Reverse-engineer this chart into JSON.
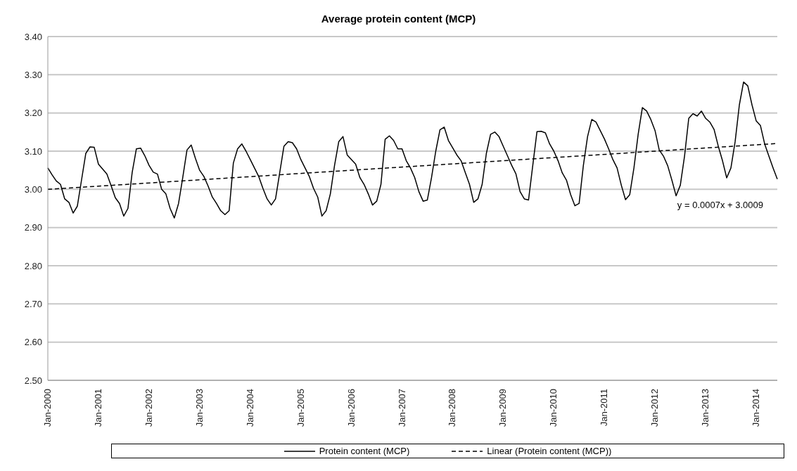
{
  "chart_data": {
    "type": "line",
    "title": "Average protein content (MCP)",
    "categories": [
      "Jan-2000",
      null,
      null,
      null,
      null,
      null,
      null,
      null,
      null,
      null,
      null,
      null,
      "Jan-2001",
      null,
      null,
      null,
      null,
      null,
      null,
      null,
      null,
      null,
      null,
      null,
      "Jan-2002",
      null,
      null,
      null,
      null,
      null,
      null,
      null,
      null,
      null,
      null,
      null,
      "Jan-2003",
      null,
      null,
      null,
      null,
      null,
      null,
      null,
      null,
      null,
      null,
      null,
      "Jan-2004",
      null,
      null,
      null,
      null,
      null,
      null,
      null,
      null,
      null,
      null,
      null,
      "Jan-2005",
      null,
      null,
      null,
      null,
      null,
      null,
      null,
      null,
      null,
      null,
      null,
      "Jan-2006",
      null,
      null,
      null,
      null,
      null,
      null,
      null,
      null,
      null,
      null,
      null,
      "Jan-2007",
      null,
      null,
      null,
      null,
      null,
      null,
      null,
      null,
      null,
      null,
      null,
      "Jan-2008",
      null,
      null,
      null,
      null,
      null,
      null,
      null,
      null,
      null,
      null,
      null,
      "Jan-2009",
      null,
      null,
      null,
      null,
      null,
      null,
      null,
      null,
      null,
      null,
      null,
      "Jan-2010",
      null,
      null,
      null,
      null,
      null,
      null,
      null,
      null,
      null,
      null,
      null,
      "Jan-2011",
      null,
      null,
      null,
      null,
      null,
      null,
      null,
      null,
      null,
      null,
      null,
      "Jan-2012",
      null,
      null,
      null,
      null,
      null,
      null,
      null,
      null,
      null,
      null,
      null,
      "Jan-2013",
      null,
      null,
      null,
      null,
      null,
      null,
      null,
      null,
      null,
      null,
      null,
      "Jan-2014",
      null,
      null,
      null,
      null,
      null
    ],
    "series": [
      {
        "name": "Protein content (MCP)",
        "color": "#000000",
        "line_style": "solid",
        "values": [
          3.056,
          3.038,
          3.022,
          3.013,
          2.975,
          2.966,
          2.938,
          2.956,
          3.025,
          3.094,
          3.111,
          3.11,
          3.066,
          3.053,
          3.04,
          3.01,
          2.978,
          2.963,
          2.93,
          2.95,
          3.044,
          3.106,
          3.108,
          3.088,
          3.063,
          3.045,
          3.04,
          3.0,
          2.988,
          2.95,
          2.925,
          2.963,
          3.031,
          3.103,
          3.116,
          3.081,
          3.05,
          3.034,
          3.009,
          2.98,
          2.963,
          2.944,
          2.934,
          2.944,
          3.069,
          3.106,
          3.119,
          3.1,
          3.078,
          3.056,
          3.034,
          3.003,
          2.975,
          2.959,
          2.975,
          3.044,
          3.113,
          3.125,
          3.122,
          3.106,
          3.078,
          3.056,
          3.034,
          3.003,
          2.98,
          2.93,
          2.944,
          2.988,
          3.063,
          3.125,
          3.138,
          3.09,
          3.078,
          3.066,
          3.031,
          3.013,
          2.988,
          2.959,
          2.969,
          3.013,
          3.131,
          3.14,
          3.128,
          3.106,
          3.106,
          3.075,
          3.056,
          3.031,
          2.994,
          2.969,
          2.972,
          3.031,
          3.1,
          3.156,
          3.163,
          3.128,
          3.109,
          3.09,
          3.075,
          3.044,
          3.013,
          2.966,
          2.975,
          3.013,
          3.094,
          3.144,
          3.15,
          3.138,
          3.113,
          3.088,
          3.063,
          3.041,
          2.994,
          2.975,
          2.972,
          3.062,
          3.151,
          3.152,
          3.148,
          3.119,
          3.1,
          3.075,
          3.043,
          3.024,
          2.986,
          2.957,
          2.963,
          3.062,
          3.138,
          3.183,
          3.176,
          3.154,
          3.132,
          3.106,
          3.078,
          3.056,
          3.011,
          2.973,
          2.986,
          3.056,
          3.144,
          3.214,
          3.205,
          3.183,
          3.154,
          3.103,
          3.087,
          3.062,
          3.024,
          2.983,
          3.011,
          3.087,
          3.186,
          3.198,
          3.192,
          3.205,
          3.186,
          3.176,
          3.157,
          3.113,
          3.075,
          3.03,
          3.056,
          3.125,
          3.221,
          3.281,
          3.271,
          3.221,
          3.179,
          3.167,
          3.119,
          3.087,
          3.056,
          3.027
        ]
      },
      {
        "name": "Linear (Protein content (MCP))",
        "color": "#000000",
        "line_style": "dashed",
        "values": [
          3.0,
          null,
          null,
          null,
          null,
          null,
          null,
          null,
          null,
          null,
          null,
          null,
          null,
          null,
          null,
          null,
          null,
          null,
          null,
          null,
          null,
          null,
          null,
          null,
          null,
          null,
          null,
          null,
          null,
          null,
          null,
          null,
          null,
          null,
          null,
          null,
          null,
          null,
          null,
          null,
          null,
          null,
          null,
          null,
          null,
          null,
          null,
          null,
          null,
          null,
          null,
          null,
          null,
          null,
          null,
          null,
          null,
          null,
          null,
          null,
          null,
          null,
          null,
          null,
          null,
          null,
          null,
          null,
          null,
          null,
          null,
          null,
          null,
          null,
          null,
          null,
          null,
          null,
          null,
          null,
          null,
          null,
          null,
          null,
          null,
          null,
          null,
          null,
          null,
          null,
          null,
          null,
          null,
          null,
          null,
          null,
          null,
          null,
          null,
          null,
          null,
          null,
          null,
          null,
          null,
          null,
          null,
          null,
          null,
          null,
          null,
          null,
          null,
          null,
          null,
          null,
          null,
          null,
          null,
          null,
          null,
          null,
          null,
          null,
          null,
          null,
          null,
          null,
          null,
          null,
          null,
          null,
          null,
          null,
          null,
          null,
          null,
          null,
          null,
          null,
          null,
          null,
          null,
          null,
          null,
          null,
          null,
          null,
          null,
          null,
          null,
          null,
          null,
          null,
          null,
          null,
          null,
          null,
          null,
          null,
          null,
          null,
          null,
          null,
          null,
          null,
          null,
          null,
          null,
          null,
          null,
          null,
          null,
          3.12
        ]
      }
    ],
    "ylim": [
      2.5,
      3.4
    ],
    "yticks": [
      {
        "value": 2.5,
        "label": "2.50"
      },
      {
        "value": 2.6,
        "label": "2.60"
      },
      {
        "value": 2.7,
        "label": "2.70"
      },
      {
        "value": 2.8,
        "label": "2.80"
      },
      {
        "value": 2.9,
        "label": "2.90"
      },
      {
        "value": 3.0,
        "label": "3.00"
      },
      {
        "value": 3.1,
        "label": "3.10"
      },
      {
        "value": 3.2,
        "label": "3.20"
      },
      {
        "value": 3.3,
        "label": "3.30"
      },
      {
        "value": 3.4,
        "label": "3.40"
      }
    ],
    "grid": "y",
    "legend": "bottom",
    "marker": "none",
    "annotations": [
      "y = 0.0007x + 3.0009"
    ]
  }
}
